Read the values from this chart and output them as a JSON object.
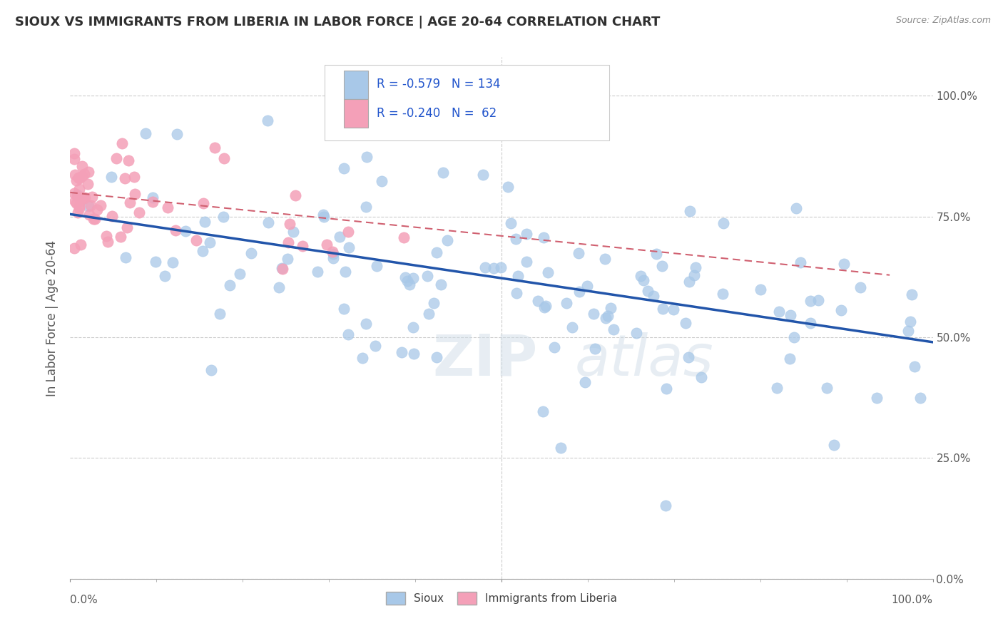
{
  "title": "SIOUX VS IMMIGRANTS FROM LIBERIA IN LABOR FORCE | AGE 20-64 CORRELATION CHART",
  "source": "Source: ZipAtlas.com",
  "ylabel": "In Labor Force | Age 20-64",
  "xlim": [
    0.0,
    1.0
  ],
  "ylim": [
    0.0,
    1.08
  ],
  "ytick_labels": [
    "0.0%",
    "25.0%",
    "50.0%",
    "75.0%",
    "100.0%"
  ],
  "ytick_values": [
    0.0,
    0.25,
    0.5,
    0.75,
    1.0
  ],
  "xtick_labels": [
    "0.0%",
    "100.0%"
  ],
  "xtick_values": [
    0.0,
    1.0
  ],
  "legend_r_sioux": "-0.579",
  "legend_n_sioux": "134",
  "legend_r_liberia": "-0.240",
  "legend_n_liberia": "62",
  "sioux_color": "#a8c8e8",
  "liberia_color": "#f4a0b8",
  "sioux_edge_color": "#88aacc",
  "liberia_edge_color": "#d88098",
  "sioux_line_color": "#2255aa",
  "liberia_line_color": "#d06070",
  "watermark": "ZIPatlas",
  "background_color": "#ffffff",
  "grid_color": "#cccccc",
  "title_color": "#303030",
  "axis_color": "#5a5a5a",
  "sioux_slope": -0.265,
  "sioux_intercept": 0.755,
  "liberia_slope": -0.18,
  "liberia_intercept": 0.8
}
